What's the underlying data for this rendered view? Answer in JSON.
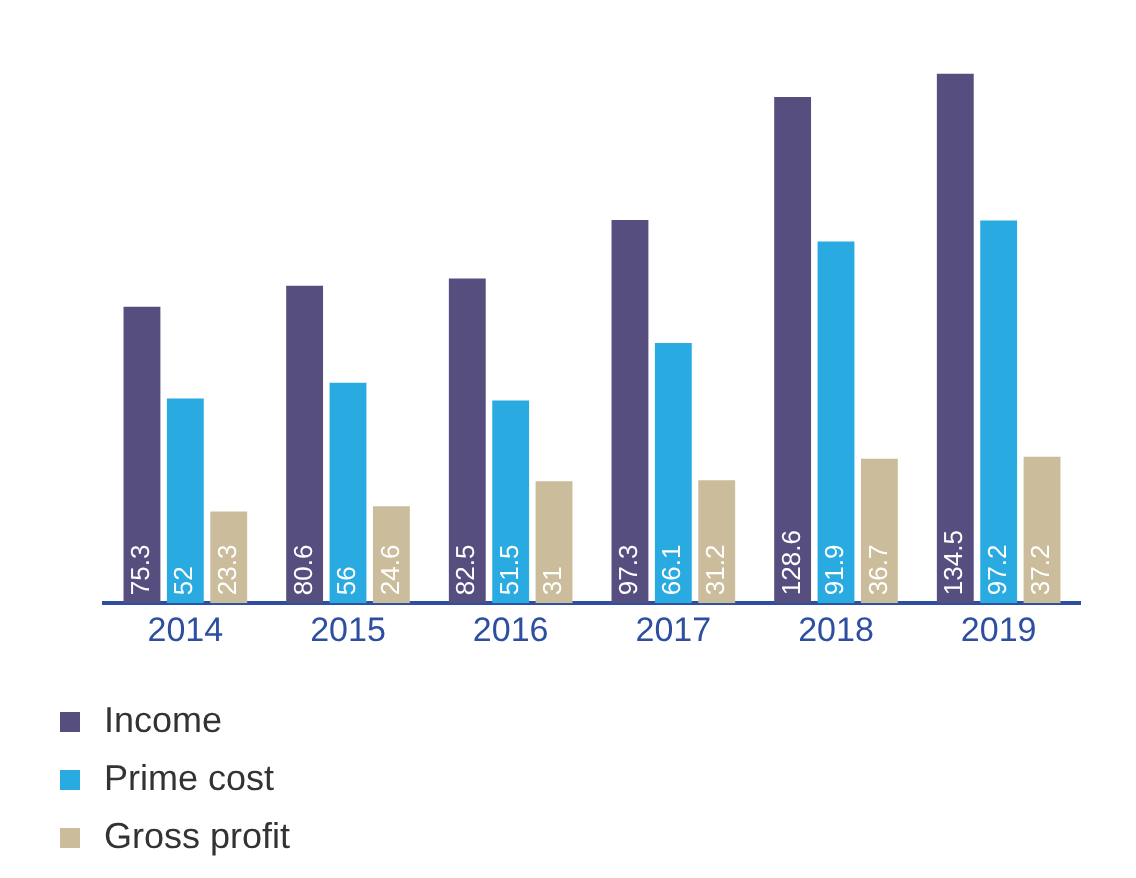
{
  "chart_data": {
    "type": "bar",
    "categories": [
      "2014",
      "2015",
      "2016",
      "2017",
      "2018",
      "2019"
    ],
    "series": [
      {
        "name": "Income",
        "color": "#574e80",
        "values": [
          75.3,
          80.6,
          82.5,
          97.3,
          128.6,
          134.5
        ]
      },
      {
        "name": "Prime cost",
        "color": "#29abe2",
        "values": [
          52,
          56,
          51.5,
          66.1,
          91.9,
          97.2
        ]
      },
      {
        "name": "Gross profit",
        "color": "#cbbc9b",
        "values": [
          23.3,
          24.6,
          31,
          31.2,
          36.7,
          37.2
        ]
      }
    ],
    "data_labels": true,
    "grid": false,
    "legend": "bottom left"
  }
}
